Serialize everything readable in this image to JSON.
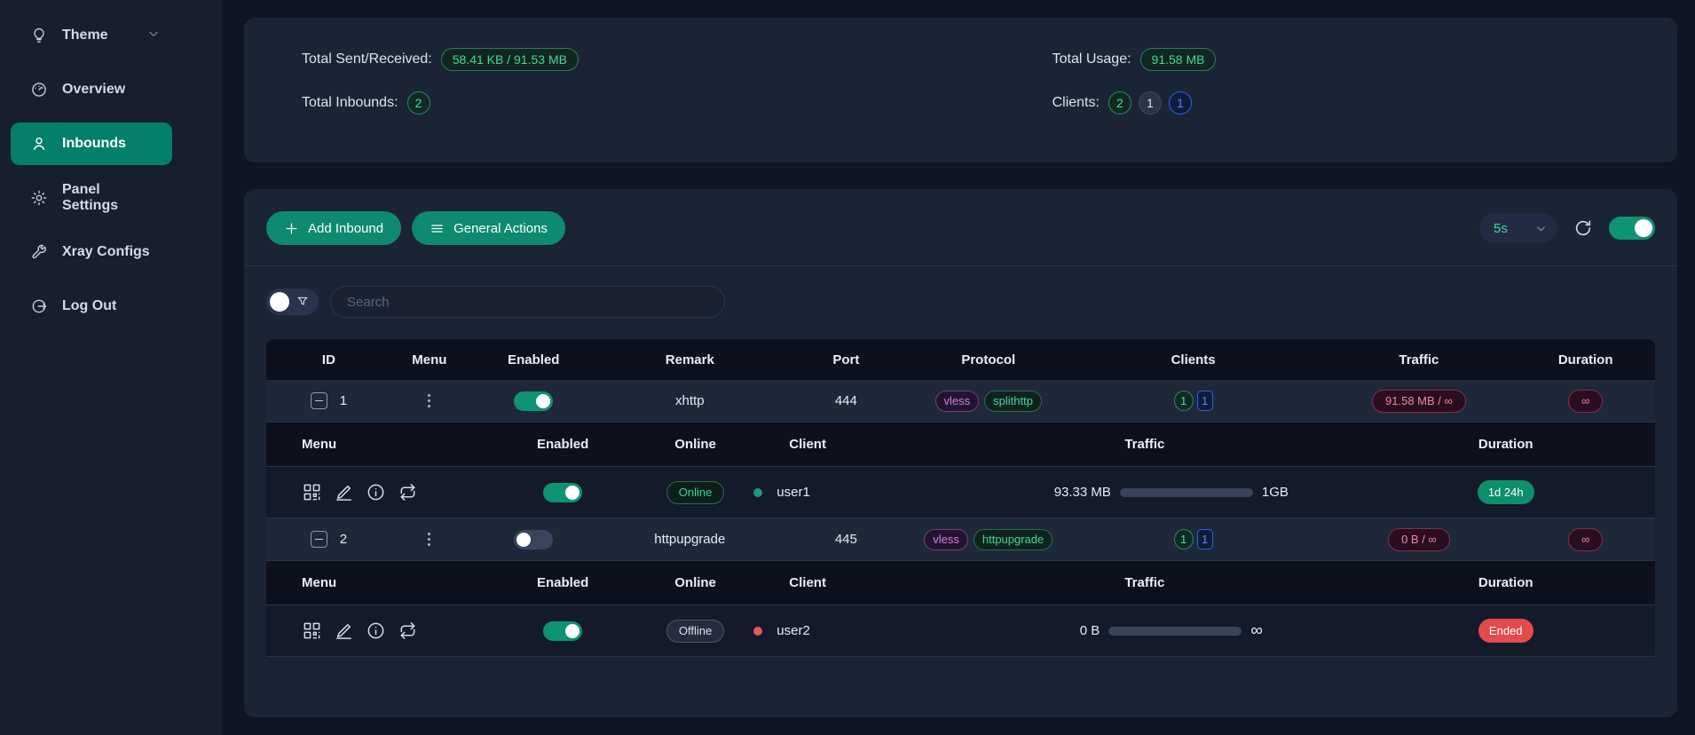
{
  "sidebar": {
    "items": [
      {
        "label": "Theme"
      },
      {
        "label": "Overview"
      },
      {
        "label": "Inbounds"
      },
      {
        "label": "Panel Settings"
      },
      {
        "label": "Xray Configs"
      },
      {
        "label": "Log Out"
      }
    ]
  },
  "stats": {
    "sent_received_label": "Total Sent/Received:",
    "sent_received_value": "58.41 KB / 91.53 MB",
    "inbounds_label": "Total Inbounds:",
    "inbounds_value": "2",
    "usage_label": "Total Usage:",
    "usage_value": "91.58 MB",
    "clients_label": "Clients:",
    "clients": [
      "2",
      "1",
      "1"
    ]
  },
  "toolbar": {
    "add_inbound": "Add Inbound",
    "general_actions": "General Actions",
    "refresh_interval": "5s",
    "auto_refresh_on": true
  },
  "search": {
    "placeholder": "Search"
  },
  "table": {
    "headers": {
      "id": "ID",
      "menu": "Menu",
      "enabled": "Enabled",
      "remark": "Remark",
      "port": "Port",
      "protocol": "Protocol",
      "clients": "Clients",
      "traffic": "Traffic",
      "duration": "Duration"
    },
    "sub_headers": {
      "menu": "Menu",
      "enabled": "Enabled",
      "online": "Online",
      "client": "Client",
      "traffic": "Traffic",
      "duration": "Duration"
    },
    "rows": [
      {
        "id": "1",
        "enabled": true,
        "remark": "xhttp",
        "port": "444",
        "protocol_tags": [
          "vless",
          "splithttp"
        ],
        "client_badges": [
          "1",
          "1"
        ],
        "traffic": "91.58 MB / ∞",
        "duration": "∞",
        "client": {
          "enabled": true,
          "status": "Online",
          "name": "user1",
          "traffic_used": "93.33 MB",
          "traffic_limit": "1GB",
          "progress_pct": 9,
          "duration": "1d 24h"
        }
      },
      {
        "id": "2",
        "enabled": false,
        "remark": "httpupgrade",
        "port": "445",
        "protocol_tags": [
          "vless",
          "httpupgrade"
        ],
        "client_badges": [
          "1",
          "1"
        ],
        "traffic": "0 B / ∞",
        "duration": "∞",
        "client": {
          "enabled": true,
          "status": "Offline",
          "name": "user2",
          "traffic_used": "0 B",
          "traffic_limit": "∞",
          "progress_pct": 100,
          "duration": "Ended"
        }
      }
    ]
  }
}
